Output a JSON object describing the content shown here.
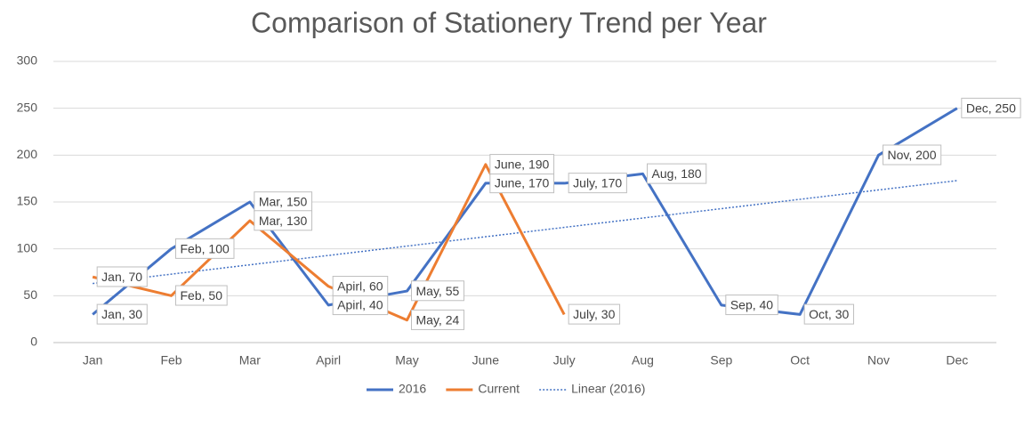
{
  "chart_data": {
    "type": "line",
    "title": "Comparison of Stationery Trend per Year",
    "categories": [
      "Jan",
      "Feb",
      "Mar",
      "Apirl",
      "May",
      "June",
      "July",
      "Aug",
      "Sep",
      "Oct",
      "Nov",
      "Dec"
    ],
    "series": [
      {
        "name": "2016",
        "color": "#4472c4",
        "values": [
          30,
          100,
          150,
          40,
          55,
          170,
          170,
          180,
          40,
          30,
          200,
          250
        ],
        "value_labels": [
          "Jan, 30",
          "Feb, 100",
          "Mar, 150",
          "Apirl, 40",
          "May, 55",
          "June, 170",
          "July, 170",
          "Aug, 180",
          "Sep, 40",
          "Oct, 30",
          "Nov, 200",
          "Dec, 250"
        ]
      },
      {
        "name": "Current",
        "color": "#ed7d31",
        "values": [
          70,
          50,
          130,
          60,
          24,
          190,
          30,
          null,
          null,
          null,
          null,
          null
        ],
        "value_labels": [
          "Jan, 70",
          "Feb, 50",
          "Mar, 130",
          "Apirl, 60",
          "May, 24",
          "June, 190",
          "July, 30",
          null,
          null,
          null,
          null,
          null
        ]
      }
    ],
    "trendline": {
      "name": "Linear (2016)",
      "series": 0,
      "kind": "linear",
      "color": "#4472c4"
    },
    "ylim": [
      0,
      300
    ],
    "yticks": [
      0,
      50,
      100,
      150,
      200,
      250,
      300
    ],
    "grid": true
  }
}
